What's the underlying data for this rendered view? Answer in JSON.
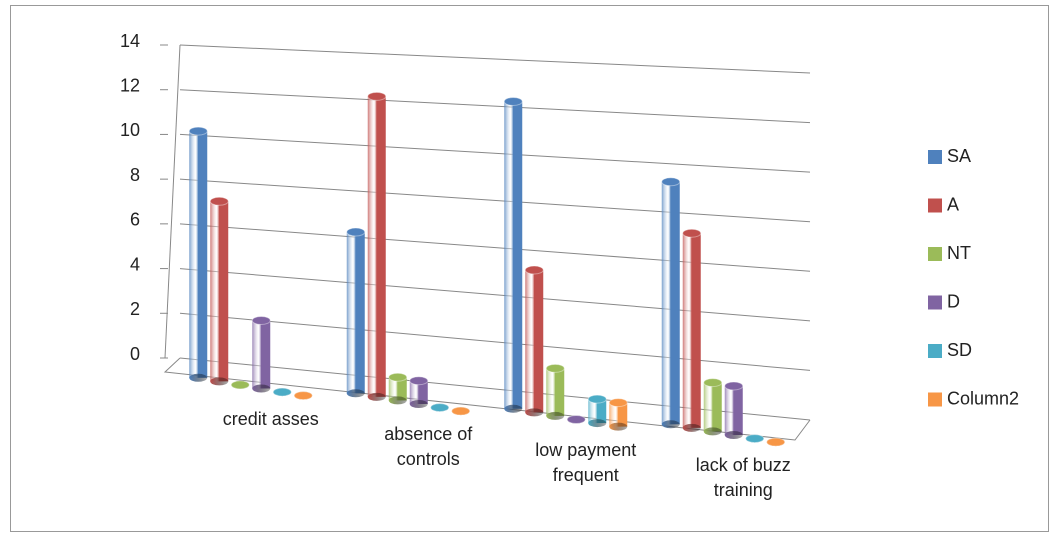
{
  "chart_data": {
    "type": "bar",
    "categories": [
      "credit asses",
      "absence of controls",
      "low payment frequent",
      "lack of buzz training"
    ],
    "series": [
      {
        "name": "SA",
        "color": "#4f81bd",
        "values": [
          11,
          7,
          13,
          10
        ]
      },
      {
        "name": "A",
        "color": "#c0504d",
        "values": [
          8,
          13,
          6,
          8
        ]
      },
      {
        "name": "NT",
        "color": "#9bbb59",
        "values": [
          0,
          1,
          2,
          2
        ]
      },
      {
        "name": "D",
        "color": "#8064a2",
        "values": [
          3,
          1,
          0,
          2
        ]
      },
      {
        "name": "SD",
        "color": "#4bacc6",
        "values": [
          0,
          0,
          1,
          0
        ]
      },
      {
        "name": "Column2",
        "color": "#f79646",
        "values": [
          0,
          0,
          1,
          0
        ]
      }
    ],
    "ylim": [
      0,
      14
    ],
    "yticks": [
      0,
      2,
      4,
      6,
      8,
      10,
      12,
      14
    ],
    "grid": true,
    "legend": "right"
  }
}
